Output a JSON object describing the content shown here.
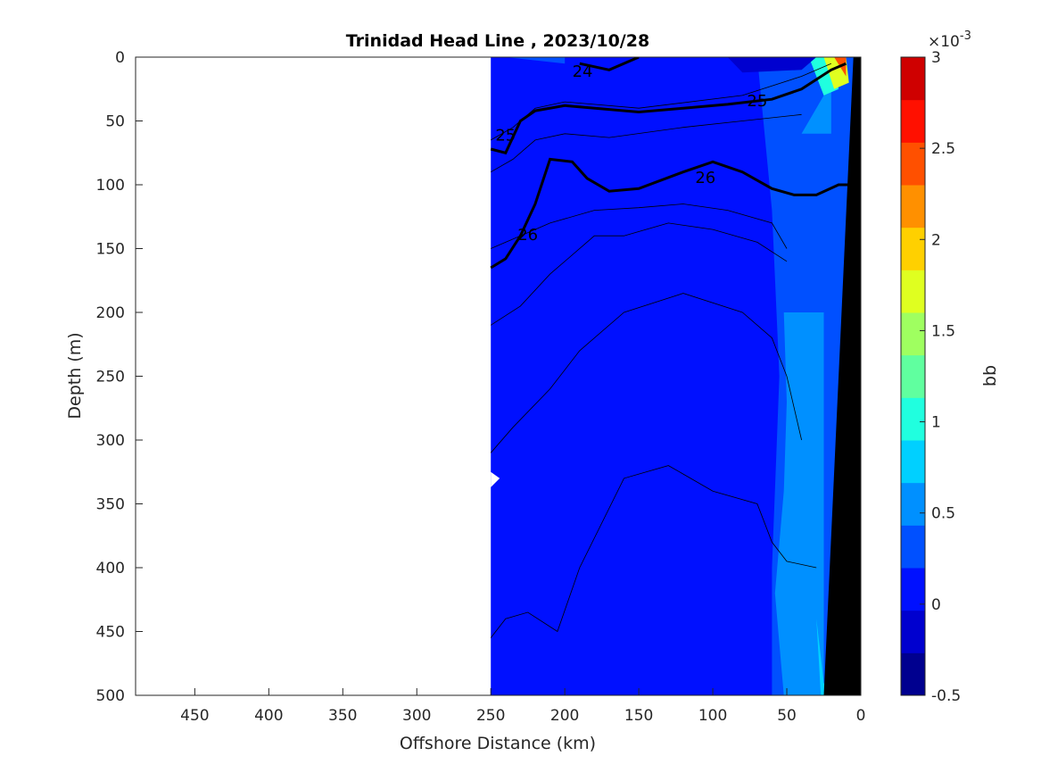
{
  "chart_data": {
    "type": "heatmap",
    "title": "Trinidad Head Line , 2023/10/28",
    "xlabel": "Offshore Distance (km)",
    "ylabel": "Depth (m)",
    "xlim": [
      490,
      0
    ],
    "ylim": [
      0,
      500
    ],
    "x_ticks": [
      "450",
      "400",
      "350",
      "300",
      "250",
      "200",
      "150",
      "100",
      "50",
      "0"
    ],
    "y_ticks": [
      "0",
      "50",
      "100",
      "150",
      "200",
      "250",
      "300",
      "350",
      "400",
      "450",
      "500"
    ],
    "grid": false,
    "colorbar": {
      "label": "bb",
      "multiplier": "×10",
      "exponent": "-3",
      "range": [
        -0.5,
        3
      ],
      "ticks": [
        "-0.5",
        "0",
        "0.5",
        "1",
        "1.5",
        "2",
        "2.5",
        "3"
      ],
      "colors": [
        "#00008f",
        "#0000cf",
        "#0010ff",
        "#0050ff",
        "#0090ff",
        "#00d0ff",
        "#20ffdf",
        "#60ff9f",
        "#9fff60",
        "#dfff20",
        "#ffd000",
        "#ff9000",
        "#ff5000",
        "#ff1000",
        "#cf0000"
      ]
    },
    "data_extent_km": [
      0,
      250
    ],
    "contours": [
      {
        "label": "24",
        "points": [
          [
            190,
            5
          ],
          [
            170,
            10
          ],
          [
            150,
            0
          ]
        ]
      },
      {
        "label": "25",
        "points": [
          [
            250,
            72
          ],
          [
            240,
            75
          ],
          [
            230,
            50
          ],
          [
            220,
            42
          ],
          [
            200,
            38
          ],
          [
            150,
            43
          ],
          [
            120,
            40
          ],
          [
            90,
            37
          ],
          [
            60,
            33
          ],
          [
            40,
            25
          ],
          [
            20,
            10
          ],
          [
            10,
            5
          ]
        ]
      },
      {
        "label": "26",
        "points": [
          [
            250,
            165
          ],
          [
            240,
            158
          ],
          [
            230,
            140
          ],
          [
            220,
            115
          ],
          [
            210,
            80
          ],
          [
            195,
            82
          ],
          [
            185,
            95
          ],
          [
            170,
            105
          ],
          [
            150,
            103
          ],
          [
            120,
            90
          ],
          [
            100,
            82
          ],
          [
            80,
            90
          ],
          [
            60,
            103
          ],
          [
            45,
            108
          ],
          [
            30,
            108
          ],
          [
            15,
            100
          ],
          [
            0,
            100
          ]
        ]
      }
    ]
  }
}
